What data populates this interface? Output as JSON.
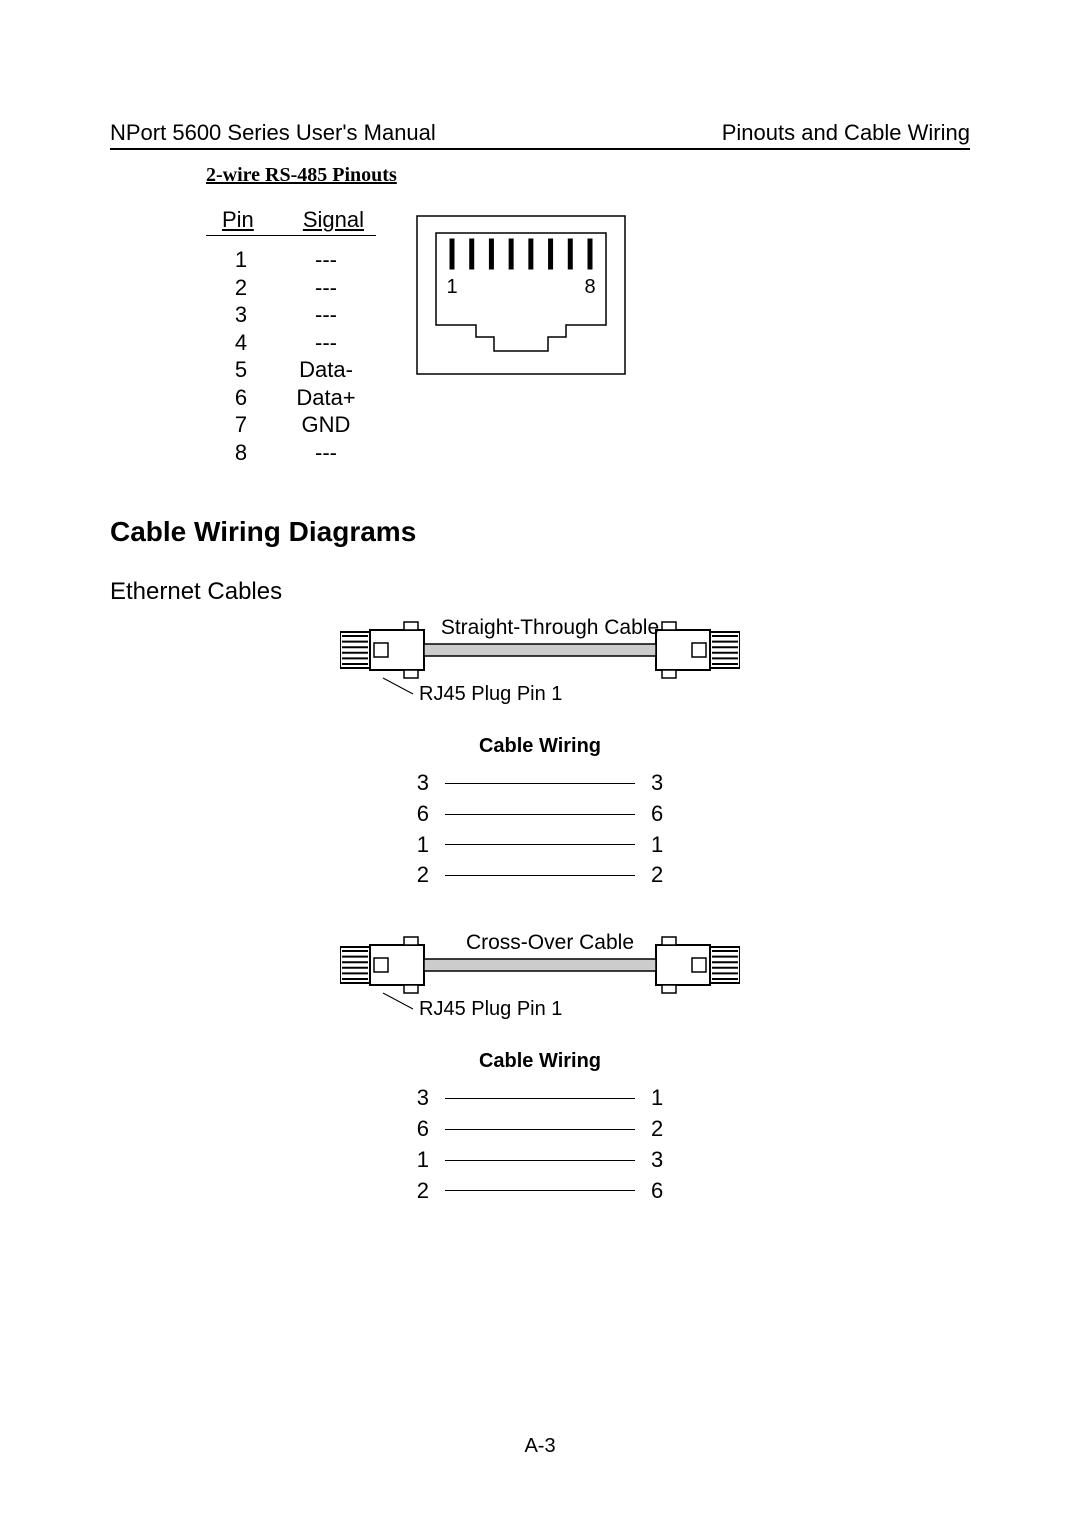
{
  "header": {
    "left": "NPort 5600 Series User's Manual",
    "right": "Pinouts and Cable Wiring"
  },
  "sectionTitle": "2-wire RS-485 Pinouts",
  "pinTable": {
    "head": {
      "pin": "Pin",
      "signal": "Signal"
    },
    "rows": [
      {
        "pin": "1",
        "signal": "---"
      },
      {
        "pin": "2",
        "signal": "---"
      },
      {
        "pin": "3",
        "signal": "---"
      },
      {
        "pin": "4",
        "signal": "---"
      },
      {
        "pin": "5",
        "signal": "Data-"
      },
      {
        "pin": "6",
        "signal": "Data+"
      },
      {
        "pin": "7",
        "signal": "GND"
      },
      {
        "pin": "8",
        "signal": "---"
      }
    ]
  },
  "rj45Jack": {
    "pinCount": 8,
    "leftLabel": "1",
    "rightLabel": "8",
    "stroke": "#000000",
    "fill": "#ffffff",
    "outerWidth": 210,
    "outerHeight": 160
  },
  "headings": {
    "h1": "Cable Wiring Diagrams",
    "h2": "Ethernet Cables"
  },
  "cables": {
    "straight": {
      "title": "Straight-Through Cable",
      "plugNote": "RJ45 Plug Pin 1",
      "wiringTitle": "Cable Wiring",
      "rows": [
        {
          "l": "3",
          "r": "3"
        },
        {
          "l": "6",
          "r": "6"
        },
        {
          "l": "1",
          "r": "1"
        },
        {
          "l": "2",
          "r": "2"
        }
      ]
    },
    "cross": {
      "title": "Cross-Over Cable",
      "plugNote": "RJ45 Plug Pin 1",
      "wiringTitle": "Cable Wiring",
      "rows": [
        {
          "l": "3",
          "r": "1"
        },
        {
          "l": "6",
          "r": "2"
        },
        {
          "l": "1",
          "r": "3"
        },
        {
          "l": "2",
          "r": "6"
        }
      ]
    }
  },
  "cablePlugDiagram": {
    "totalWidth": 400,
    "height": 50,
    "plugBodyW": 54,
    "plugBodyH": 40,
    "stripeCount": 6,
    "cableFill": "#cccccc",
    "cableStroke": "#000000",
    "stroke": "#000000",
    "leaderLength": 26
  },
  "pageNumber": "A-3"
}
